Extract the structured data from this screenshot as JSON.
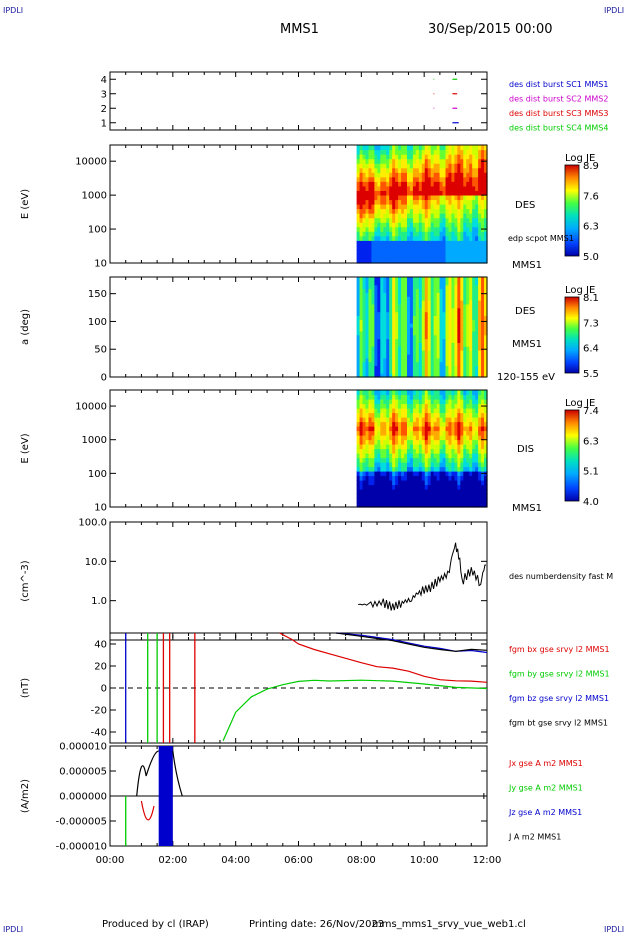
{
  "header": {
    "corner_tl": "IPDLI",
    "corner_tr": "IPDLI",
    "corner_bl": "IPDLI",
    "corner_br": "IPDLI",
    "spacecraft": "MMS1",
    "datetime": "30/Sep/2015 00:00"
  },
  "footer": {
    "credit": "Produced by cl (IRAP)",
    "print_date": "Printing date: 26/Nov/2023",
    "filename": "mms_mms1_srvy_vue_web1.cl"
  },
  "colors": {
    "blue": "#0000cc",
    "magenta": "#cc00cc",
    "red": "#dd0000",
    "green": "#00cc00",
    "black": "#000000"
  },
  "chart_data": [
    {
      "type": "scatter",
      "panel": "burst-availability",
      "yticks": [
        "1",
        "2",
        "3",
        "4"
      ],
      "ylim": [
        0.5,
        4.5
      ],
      "legend": [
        {
          "name": "des dist burst SC1 MMS1",
          "color": "#0000cc"
        },
        {
          "name": "des dist burst SC2 MMS2",
          "color": "#cc00cc"
        },
        {
          "name": "des dist burst SC3 MMS3",
          "color": "#dd0000"
        },
        {
          "name": "des dist burst SC4 MMS4",
          "color": "#00cc00"
        }
      ],
      "series": [
        {
          "name": "des dist burst SC1 MMS1",
          "y": 1,
          "segments": [
            [
              10.9,
              11.1
            ]
          ]
        },
        {
          "name": "des dist burst SC2 MMS2",
          "y": 2,
          "segments": [
            [
              10.3,
              10.32
            ],
            [
              10.9,
              11.05
            ]
          ]
        },
        {
          "name": "des dist burst SC3 MMS3",
          "y": 3,
          "segments": [
            [
              10.3,
              10.32
            ],
            [
              10.9,
              11.05
            ]
          ]
        },
        {
          "name": "des dist burst SC4 MMS4",
          "y": 4,
          "segments": [
            [
              10.3,
              10.32
            ],
            [
              10.9,
              11.05
            ]
          ]
        }
      ]
    },
    {
      "type": "heatmap",
      "panel": "des-energy",
      "ylabel": "E (eV)",
      "scale": "log",
      "yticks": [
        "10",
        "100",
        "1000",
        "10000"
      ],
      "ylim": [
        10,
        30000
      ],
      "data_start_hour": 7.85,
      "right_labels": [
        "DES",
        "edp scpot MMS1",
        "MMS1"
      ],
      "colorbar": {
        "title": "Log JE",
        "ticks": [
          "8.9",
          "7.6",
          "6.3",
          "5.0"
        ],
        "range": [
          5.0,
          8.9
        ]
      }
    },
    {
      "type": "heatmap",
      "panel": "des-pitch-angle",
      "ylabel": "a (deg)",
      "yticks": [
        "0",
        "50",
        "100",
        "150"
      ],
      "ylim": [
        0,
        180
      ],
      "data_start_hour": 7.85,
      "right_labels": [
        "DES",
        "MMS1",
        "120-155 eV"
      ],
      "colorbar": {
        "title": "Log JE",
        "ticks": [
          "8.1",
          "7.3",
          "6.4",
          "5.5"
        ],
        "range": [
          5.5,
          8.1
        ]
      }
    },
    {
      "type": "heatmap",
      "panel": "dis-energy",
      "ylabel": "E (eV)",
      "scale": "log",
      "yticks": [
        "10",
        "100",
        "1000",
        "10000"
      ],
      "ylim": [
        10,
        30000
      ],
      "data_start_hour": 7.85,
      "right_labels": [
        "DIS",
        "MMS1"
      ],
      "colorbar": {
        "title": "Log JE",
        "ticks": [
          "7.4",
          "6.3",
          "5.1",
          "4.0"
        ],
        "range": [
          4.0,
          7.4
        ]
      }
    },
    {
      "type": "line",
      "panel": "density",
      "ylabel": "(cm^-3)",
      "scale": "log",
      "yticks": [
        "1.0",
        "10.0",
        "100.0"
      ],
      "ylim": [
        0.1,
        100
      ],
      "series": [
        {
          "name": "des numberdensity fast M",
          "color": "#000000",
          "x": [
            7.9,
            8.3,
            8.7,
            9.0,
            9.3,
            9.6,
            9.9,
            10.2,
            10.5,
            10.8,
            11.0,
            11.2,
            11.5,
            11.8,
            12.0
          ],
          "y": [
            0.8,
            0.8,
            0.9,
            0.7,
            0.9,
            1.1,
            1.8,
            2.2,
            3.5,
            5.0,
            25,
            3.0,
            6.0,
            2.5,
            10
          ]
        }
      ]
    },
    {
      "type": "line",
      "panel": "magnetic-field",
      "ylabel": "(nT)",
      "yticks": [
        "-40",
        "-20",
        "0",
        "20",
        "40"
      ],
      "ylim": [
        -50,
        50
      ],
      "series": [
        {
          "name": "fgm bx gse srvy l2 MMS1",
          "color": "#dd0000",
          "x": [
            5.4,
            5.8,
            6.0,
            6.5,
            7.0,
            7.5,
            8.0,
            8.5,
            9.0,
            9.5,
            10.0,
            10.5,
            11.0,
            11.5,
            12.0
          ],
          "y": [
            50,
            44,
            40,
            35,
            31,
            27,
            23,
            20,
            17,
            14,
            11,
            9,
            7,
            5,
            4
          ]
        },
        {
          "name": "fgm by gse srvy l2 MMS1",
          "color": "#00cc00",
          "x": [
            3.6,
            4.0,
            4.5,
            5.0,
            5.5,
            6.0,
            6.5,
            7.0,
            8.0,
            9.0,
            10.0,
            11.0,
            12.0
          ],
          "y": [
            -48,
            -22,
            -8,
            -1,
            3,
            6,
            7,
            7,
            6,
            5,
            4,
            2,
            0
          ]
        },
        {
          "name": "fgm bz gse srvy l2 MMS1",
          "color": "#0000cc",
          "x": [
            7.2,
            8.0,
            8.5,
            9.0,
            9.5,
            10.0,
            10.5,
            11.0,
            11.5,
            12.0
          ],
          "y": [
            50,
            48,
            46,
            44,
            41,
            38,
            36,
            34,
            33,
            31
          ]
        },
        {
          "name": "fgm bt gse srvy l2 MMS1",
          "color": "#000000",
          "x": [
            7.2,
            8.0,
            8.5,
            9.0,
            9.5,
            10.0,
            10.5,
            11.0,
            11.5,
            12.0
          ],
          "y": [
            50,
            47,
            45,
            43,
            40,
            37,
            35,
            34,
            34,
            33
          ]
        }
      ]
    },
    {
      "type": "line",
      "panel": "current-density",
      "ylabel": "(A/m2)",
      "yticks": [
        "-0.000010",
        "-0.000005",
        "0.000000",
        "0.000005",
        "0.000010"
      ],
      "ylim": [
        -1e-05,
        1e-05
      ],
      "xticks": [
        "00:00",
        "02:00",
        "04:00",
        "06:00",
        "08:00",
        "10:00",
        "12:00"
      ],
      "xlim": [
        0,
        12
      ],
      "series": [
        {
          "name": "Jx gse A m2 MMS1",
          "color": "#dd0000"
        },
        {
          "name": "Jy gse A m2 MMS1",
          "color": "#00cc00"
        },
        {
          "name": "Jz gse A m2 MMS1",
          "color": "#0000cc"
        },
        {
          "name": "J A m2 MMS1",
          "color": "#000000"
        }
      ]
    }
  ]
}
